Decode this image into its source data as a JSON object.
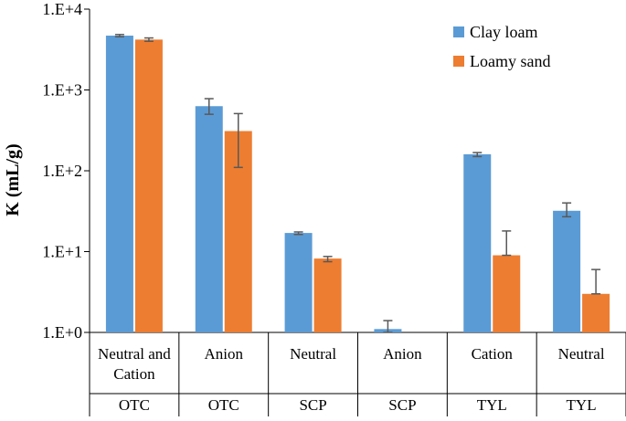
{
  "chart_data": {
    "type": "bar",
    "yscale": "log",
    "ylabel": "K (mL/g)",
    "ylim": [
      1,
      10000
    ],
    "yticks": [
      {
        "value": 1,
        "label": "1.E+0"
      },
      {
        "value": 10,
        "label": "1.E+1"
      },
      {
        "value": 100,
        "label": "1.E+2"
      },
      {
        "value": 1000,
        "label": "1.E+3"
      },
      {
        "value": 10000,
        "label": "1.E+4"
      }
    ],
    "categories": [
      {
        "group": [
          "Neutral and",
          "Cation"
        ],
        "compound": "OTC"
      },
      {
        "group": [
          "Anion"
        ],
        "compound": "OTC"
      },
      {
        "group": [
          "Neutral"
        ],
        "compound": "SCP"
      },
      {
        "group": [
          "Anion"
        ],
        "compound": "SCP"
      },
      {
        "group": [
          "Cation"
        ],
        "compound": "TYL"
      },
      {
        "group": [
          "Neutral"
        ],
        "compound": "TYL"
      }
    ],
    "series": [
      {
        "name": "Clay loam",
        "color": "#5b9bd5",
        "values": [
          4700,
          630,
          17,
          1.1,
          160,
          32
        ],
        "err_low": [
          4550,
          500,
          16.3,
          1.0,
          150,
          27
        ],
        "err_high": [
          4850,
          780,
          17.5,
          1.4,
          168,
          40
        ]
      },
      {
        "name": "Loamy sand",
        "color": "#ed7d31",
        "values": [
          4200,
          310,
          8.2,
          null,
          9,
          3
        ],
        "err_low": [
          4000,
          110,
          7.5,
          null,
          9,
          3
        ],
        "err_high": [
          4400,
          510,
          8.7,
          null,
          18,
          6
        ]
      }
    ],
    "legend": "top-right",
    "grid": false
  }
}
